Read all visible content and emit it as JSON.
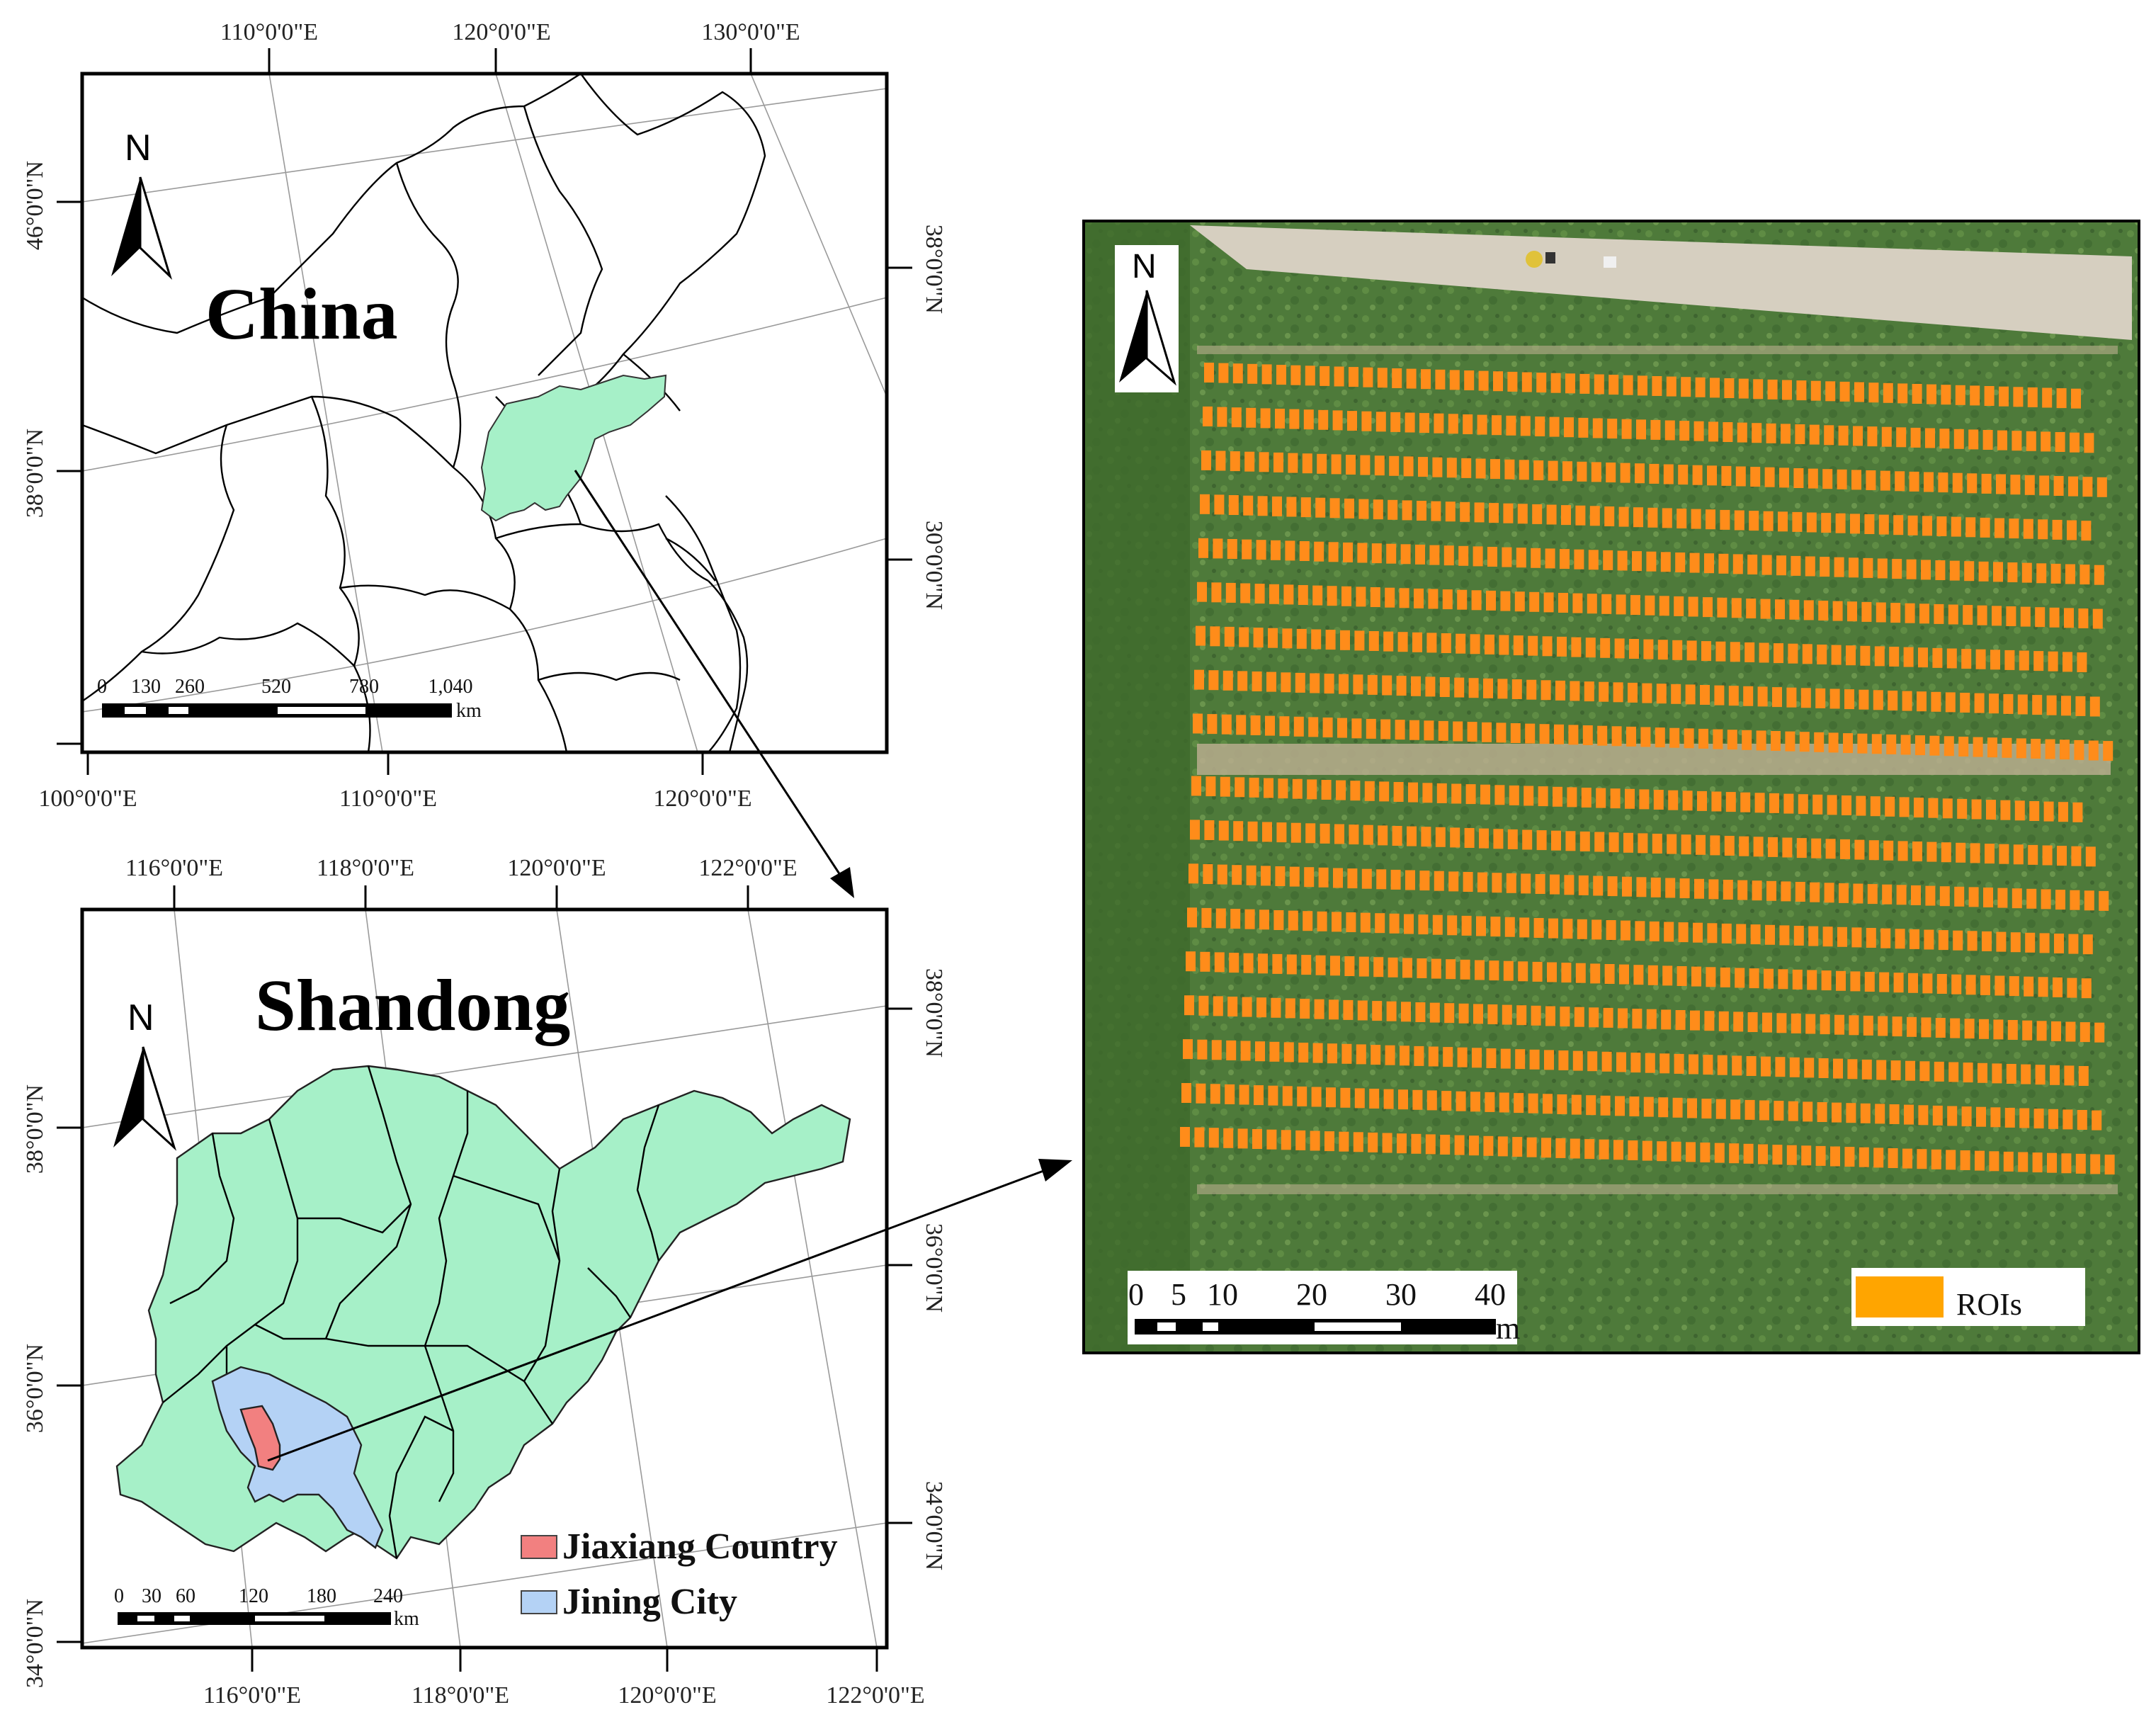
{
  "china_map": {
    "title": "China",
    "top_ticks": [
      "110°0'0\"E",
      "120°0'0\"E",
      "130°0'0\"E"
    ],
    "bottom_ticks": [
      "100°0'0\"E",
      "110°0'0\"E",
      "120°0'0\"E"
    ],
    "left_ticks": [
      "46°0'0\"N",
      "38°0'0\"N"
    ],
    "right_ticks": [
      "38°0'0\"N",
      "30°0'0\"N"
    ],
    "north_label": "N",
    "scale": {
      "labels": [
        "0",
        "130",
        "260",
        "520",
        "780",
        "1,040"
      ],
      "unit": "km"
    },
    "highlight_color": "#a6f0c8"
  },
  "shandong_map": {
    "title": "Shandong",
    "top_ticks": [
      "116°0'0\"E",
      "118°0'0\"E",
      "120°0'0\"E",
      "122°0'0\"E"
    ],
    "bottom_ticks": [
      "116°0'0\"E",
      "118°0'0\"E",
      "120°0'0\"E",
      "122°0'0\"E"
    ],
    "left_ticks": [
      "38°0'0\"N",
      "36°0'0\"N",
      "34°0'0\"N"
    ],
    "right_ticks": [
      "38°0'0\"N",
      "36°0'0\"N",
      "34°0'0\"N"
    ],
    "north_label": "N",
    "scale": {
      "labels": [
        "0",
        "30",
        "60",
        "120",
        "180",
        "240"
      ],
      "unit": "km"
    },
    "legend": [
      {
        "label": "Jiaxiang Country",
        "color": "#f28080"
      },
      {
        "label": "Jining City",
        "color": "#b4d2f5"
      }
    ],
    "province_color": "#a6f0c8"
  },
  "field_image": {
    "north_label": "N",
    "scale": {
      "labels": [
        "0",
        "5",
        "10",
        "20",
        "30",
        "40"
      ],
      "unit": "m"
    },
    "legend": {
      "label": "ROIs",
      "color": "#ffa500"
    },
    "plot_color": "#ff8c1a"
  }
}
